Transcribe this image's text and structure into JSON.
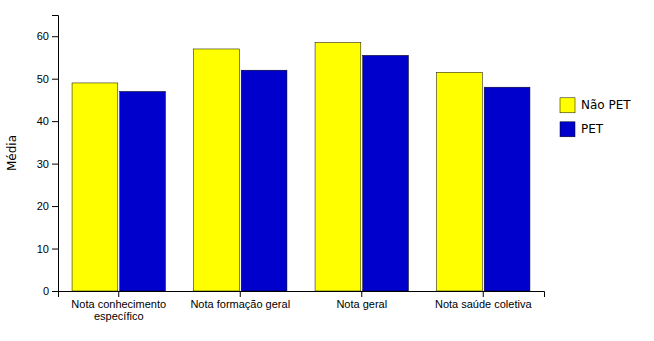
{
  "chart_data": {
    "type": "bar",
    "categories": [
      "Nota conhecimento específico",
      "Nota formação geral",
      "Nota geral",
      "Nota saúde coletiva"
    ],
    "series": [
      {
        "name": "Não PET",
        "color": "#FFFF00",
        "values": [
          49.0,
          57.0,
          58.5,
          51.5
        ]
      },
      {
        "name": "PET",
        "color": "#0000CC",
        "values": [
          47.0,
          52.0,
          55.5,
          48.0
        ]
      }
    ],
    "ylabel": "Média",
    "ylim": [
      0,
      65
    ],
    "yticks": [
      0,
      10,
      20,
      30,
      40,
      50,
      60
    ],
    "grid": false,
    "legend": "right"
  }
}
